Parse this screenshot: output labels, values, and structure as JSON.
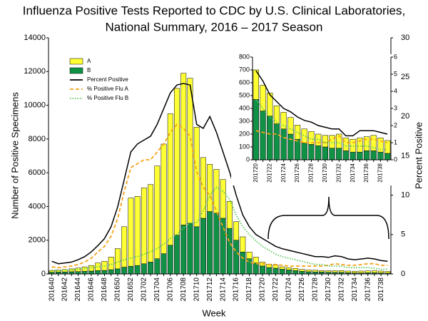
{
  "chart_data": [
    {
      "type": "bar",
      "title": [
        "Influenza Positive Tests Reported to CDC by U.S. Clinical Laboratories,",
        "National Summary, 2016 – 2017 Season"
      ],
      "xlabel": "Week",
      "ylabel": "Number of Positive Specimens",
      "y2label": "Percent Positive",
      "legend": "upper left",
      "stacked": true,
      "categories": [
        "201640",
        null,
        "201642",
        null,
        "201644",
        null,
        "201646",
        null,
        "201648",
        null,
        "201650",
        null,
        "201652",
        null,
        "201702",
        null,
        "201704",
        null,
        "201706",
        null,
        "201708",
        null,
        "201710",
        null,
        "201712",
        null,
        "201714",
        null,
        "201716",
        null,
        "201718",
        null,
        "201720",
        null,
        "201722",
        null,
        "201724",
        null,
        "201726",
        null,
        "201728",
        null,
        "201730",
        null,
        "201732",
        null,
        "201734",
        null,
        "201736",
        null,
        "201738",
        null
      ],
      "ylim": [
        0,
        14000
      ],
      "yticks": [
        0,
        2000,
        4000,
        6000,
        8000,
        10000,
        12000,
        14000
      ],
      "y2lim": [
        0,
        30
      ],
      "y2ticks": [
        0,
        5,
        10,
        15,
        20,
        25,
        30
      ],
      "series": [
        {
          "name": "B",
          "color": "#109246",
          "values": [
            100,
            110,
            120,
            130,
            140,
            160,
            170,
            200,
            210,
            250,
            300,
            400,
            450,
            500,
            600,
            700,
            900,
            1200,
            1700,
            2300,
            2900,
            3000,
            2800,
            3300,
            3700,
            3600,
            3300,
            2700,
            2000,
            1300,
            900,
            650,
            470,
            380,
            340,
            280,
            240,
            200,
            160,
            130,
            120,
            110,
            100,
            90,
            90,
            70,
            60,
            60,
            70,
            70,
            60,
            50
          ]
        },
        {
          "name": "A",
          "color": "#ffff33",
          "values": [
            100,
            120,
            140,
            170,
            210,
            260,
            330,
            450,
            540,
            750,
            1200,
            2400,
            4050,
            4100,
            4500,
            4600,
            5500,
            6500,
            7800,
            8700,
            9000,
            8600,
            5900,
            3600,
            2800,
            2600,
            2300,
            1600,
            1100,
            900,
            400,
            350,
            230,
            200,
            180,
            140,
            130,
            130,
            110,
            110,
            100,
            90,
            90,
            100,
            110,
            100,
            100,
            110,
            110,
            120,
            110,
            100
          ]
        },
        {
          "name": "Percent Positive",
          "color": "#000000",
          "axis": "y2",
          "style": "solid",
          "values": [
            1.6,
            1.3,
            1.4,
            1.5,
            1.8,
            2.2,
            2.8,
            3.6,
            4.5,
            6.0,
            8.5,
            12.0,
            15.5,
            16.5,
            17.0,
            17.5,
            19.0,
            21.0,
            23.0,
            24.0,
            24.2,
            24.0,
            19.0,
            18.5,
            20.0,
            18.0,
            15.5,
            13.0,
            10.0,
            7.5,
            6.0,
            5.0,
            4.5,
            4.0,
            3.5,
            3.2,
            3.0,
            2.8,
            2.6,
            2.4,
            2.2,
            2.2,
            2.1,
            2.3,
            2.2,
            1.9,
            1.8,
            1.9,
            2.0,
            1.9,
            1.7,
            1.6
          ]
        },
        {
          "name": "% Positive Flu A",
          "color": "#f5a31a",
          "axis": "y2",
          "style": "dashed",
          "values": [
            0.9,
            0.8,
            0.9,
            1.0,
            1.2,
            1.5,
            2.0,
            2.8,
            3.5,
            4.8,
            7.0,
            10.5,
            13.5,
            14.0,
            14.5,
            14.5,
            15.5,
            16.5,
            18.0,
            19.0,
            18.5,
            17.5,
            13.0,
            11.0,
            10.0,
            8.0,
            6.0,
            4.0,
            2.8,
            2.0,
            1.5,
            1.3,
            1.3,
            1.2,
            1.2,
            1.1,
            1.0,
            1.0,
            1.0,
            1.0,
            1.0,
            1.0,
            1.1,
            1.3,
            1.2,
            1.1,
            1.1,
            1.2,
            1.3,
            1.3,
            1.1,
            1.1
          ]
        },
        {
          "name": "% Positive Flu B",
          "color": "#5cc85c",
          "axis": "y2",
          "style": "dotted",
          "values": [
            0.5,
            0.4,
            0.5,
            0.5,
            0.6,
            0.7,
            0.8,
            0.9,
            1.0,
            1.2,
            1.5,
            1.8,
            2.0,
            2.2,
            2.5,
            2.8,
            3.2,
            3.8,
            4.5,
            5.0,
            5.8,
            6.5,
            6.5,
            8.0,
            10.0,
            11.0,
            10.5,
            9.5,
            7.5,
            6.0,
            5.0,
            4.2,
            3.5,
            3.0,
            2.5,
            2.2,
            2.0,
            1.8,
            1.6,
            1.4,
            1.2,
            1.2,
            1.0,
            1.0,
            1.0,
            0.8,
            0.8,
            0.8,
            0.8,
            0.7,
            0.6,
            0.6
          ]
        }
      ]
    },
    {
      "type": "bar",
      "stacked": true,
      "categories": [
        "201720",
        null,
        "201722",
        null,
        "201724",
        null,
        "201726",
        null,
        "201728",
        null,
        "201730",
        null,
        "201732",
        null,
        "201734",
        null,
        "201736",
        null,
        "201738",
        null
      ],
      "ylim": [
        0,
        800
      ],
      "yticks": [
        0,
        100,
        200,
        300,
        400,
        500,
        600,
        700,
        800
      ],
      "y2lim": [
        0,
        6
      ],
      "y2ticks": [
        0,
        1,
        2,
        3,
        4,
        5,
        6
      ],
      "series": [
        {
          "color": "#109246",
          "values": [
            470,
            380,
            340,
            280,
            240,
            200,
            160,
            130,
            120,
            110,
            100,
            90,
            90,
            70,
            60,
            60,
            70,
            70,
            60,
            50
          ]
        },
        {
          "color": "#ffff33",
          "values": [
            230,
            200,
            180,
            140,
            130,
            130,
            110,
            110,
            100,
            90,
            90,
            100,
            110,
            100,
            100,
            110,
            110,
            120,
            110,
            100
          ]
        },
        {
          "color": "#000000",
          "axis": "y2",
          "style": "solid",
          "values": [
            5.2,
            4.6,
            3.8,
            3.4,
            3.0,
            2.8,
            2.5,
            2.3,
            2.2,
            2.0,
            1.9,
            1.8,
            1.8,
            1.4,
            1.4,
            1.7,
            1.7,
            1.7,
            1.6,
            1.5
          ]
        },
        {
          "color": "#f5a31a",
          "axis": "y2",
          "style": "dashed",
          "values": [
            1.7,
            1.6,
            1.5,
            1.5,
            1.3,
            1.2,
            1.1,
            1.0,
            1.0,
            1.0,
            1.0,
            1.2,
            1.4,
            1.0,
            1.0,
            1.1,
            1.2,
            1.2,
            1.1,
            1.0
          ]
        },
        {
          "color": "#5cc85c",
          "axis": "y2",
          "style": "dotted",
          "values": [
            3.5,
            3.0,
            2.5,
            2.2,
            2.0,
            1.8,
            1.6,
            1.4,
            1.2,
            1.2,
            1.0,
            1.0,
            1.0,
            0.8,
            0.8,
            0.8,
            0.8,
            0.7,
            0.6,
            0.6
          ]
        }
      ]
    }
  ]
}
